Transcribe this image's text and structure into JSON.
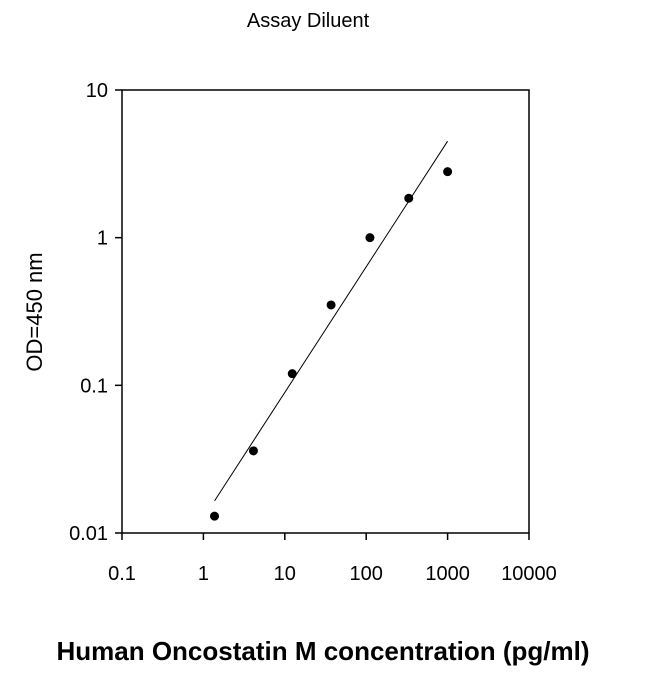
{
  "chart_data": {
    "type": "scatter",
    "title": "Assay Diluent",
    "xlabel": "Human Oncostatin M concentration (pg/ml)",
    "ylabel": "OD=450 nm",
    "x_scale": "log",
    "y_scale": "log",
    "xlim": [
      0.1,
      10000
    ],
    "ylim": [
      0.01,
      10
    ],
    "x_ticks": [
      "0.1",
      "1",
      "10",
      "100",
      "1000",
      "10000"
    ],
    "y_ticks": [
      "0.01",
      "0.1",
      "1",
      "10"
    ],
    "grid": false,
    "legend": "none",
    "series": [
      {
        "x": [
          1.37,
          4.12,
          12.35,
          37.04,
          111.1,
          333.3,
          1000
        ],
        "y": [
          0.013,
          0.036,
          0.12,
          0.35,
          1.0,
          1.85,
          2.8
        ]
      }
    ],
    "trendline": {
      "x": [
        1.37,
        1000
      ],
      "y": [
        0.0165,
        4.5
      ]
    },
    "colors": {
      "point": "#000000",
      "line": "#000000"
    }
  }
}
